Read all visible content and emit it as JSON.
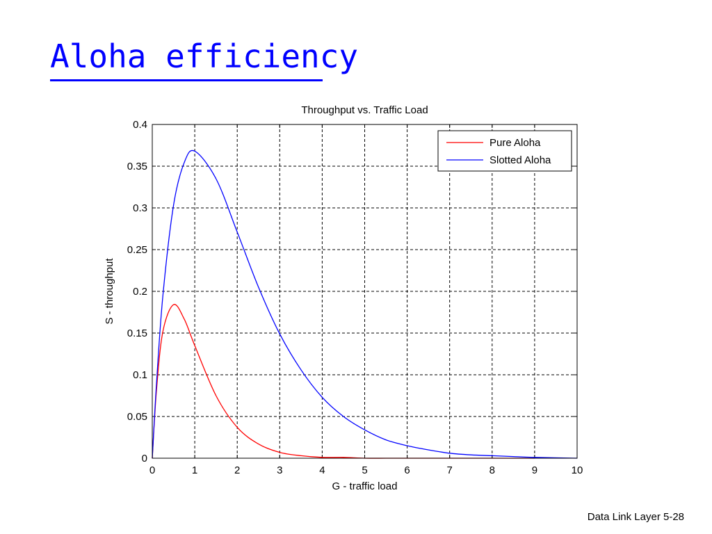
{
  "slide": {
    "title": "Aloha efficiency",
    "footer": "Data Link Layer  5-28"
  },
  "chart_data": {
    "type": "line",
    "title": "Throughput vs. Traffic Load",
    "xlabel": "G - traffic load",
    "ylabel": "S - throughput",
    "xlim": [
      0,
      10
    ],
    "ylim": [
      0,
      0.4
    ],
    "xticks": [
      "0",
      "1",
      "2",
      "3",
      "4",
      "5",
      "6",
      "7",
      "8",
      "9",
      "10"
    ],
    "yticks": [
      "0",
      "0.05",
      "0.1",
      "0.15",
      "0.2",
      "0.25",
      "0.3",
      "0.35",
      "0.4"
    ],
    "grid": true,
    "legend_position": "top-right",
    "x": [
      0,
      0.1,
      0.25,
      0.5,
      0.75,
      1,
      1.5,
      2,
      2.5,
      3,
      3.5,
      4,
      4.5,
      5,
      5.5,
      6,
      6.5,
      7,
      7.5,
      8,
      8.5,
      9,
      10
    ],
    "series": [
      {
        "name": "Pure Aloha",
        "color": "#ff0000",
        "x_end": 9,
        "values": [
          0,
          0.082,
          0.152,
          0.184,
          0.167,
          0.135,
          0.075,
          0.037,
          0.017,
          0.007,
          0.003,
          0.001,
          0.001,
          0,
          0,
          0,
          0,
          0,
          0,
          0,
          0,
          0,
          0
        ]
      },
      {
        "name": "Slotted Aloha",
        "color": "#0000ff",
        "values": [
          0,
          0.09,
          0.195,
          0.303,
          0.354,
          0.368,
          0.335,
          0.271,
          0.205,
          0.149,
          0.106,
          0.073,
          0.05,
          0.034,
          0.022,
          0.015,
          0.01,
          0.006,
          0.004,
          0.003,
          0.002,
          0.001,
          0
        ]
      }
    ]
  }
}
